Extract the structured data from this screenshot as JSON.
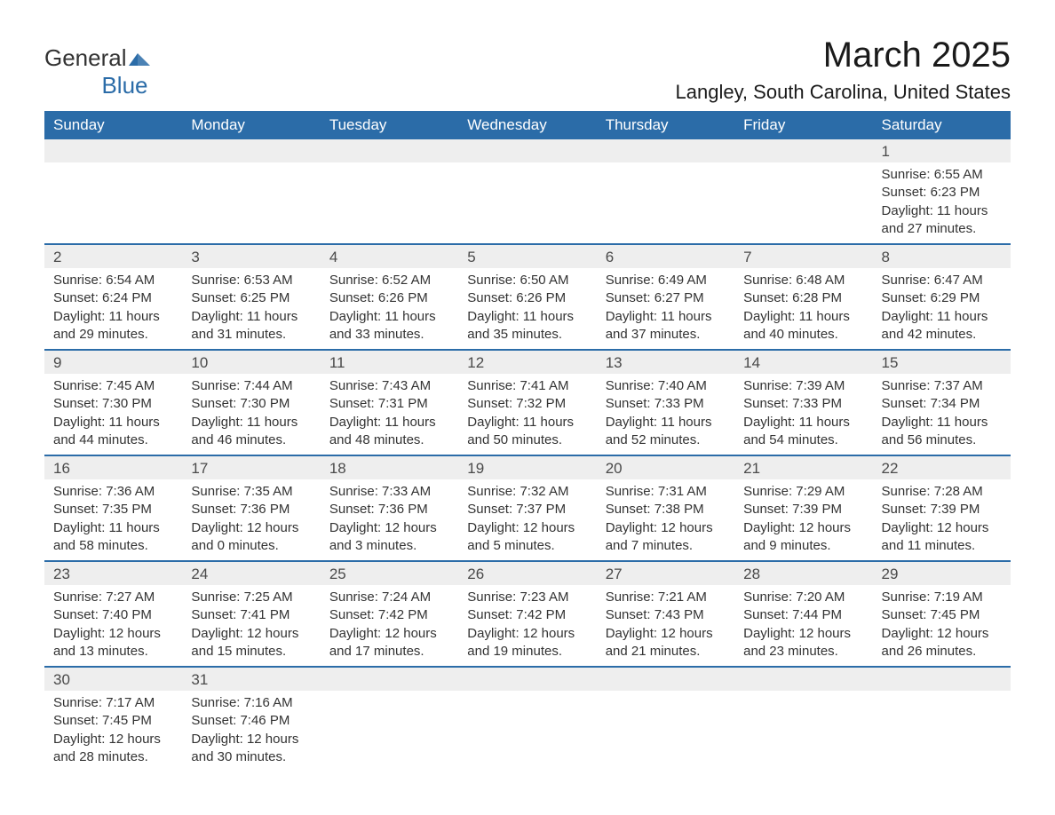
{
  "logo": {
    "line1": "General",
    "line2": "Blue",
    "iconColor": "#2b6ca8"
  },
  "title": "March 2025",
  "location": "Langley, South Carolina, United States",
  "colors": {
    "headerBg": "#2b6ca8",
    "headerText": "#ffffff",
    "dayRowBg": "#eeeeee",
    "borderTop": "#2b6ca8",
    "text": "#333333"
  },
  "dayHeaders": [
    "Sunday",
    "Monday",
    "Tuesday",
    "Wednesday",
    "Thursday",
    "Friday",
    "Saturday"
  ],
  "weeks": [
    [
      null,
      null,
      null,
      null,
      null,
      null,
      {
        "day": "1",
        "sunrise": "Sunrise: 6:55 AM",
        "sunset": "Sunset: 6:23 PM",
        "daylight1": "Daylight: 11 hours",
        "daylight2": "and 27 minutes."
      }
    ],
    [
      {
        "day": "2",
        "sunrise": "Sunrise: 6:54 AM",
        "sunset": "Sunset: 6:24 PM",
        "daylight1": "Daylight: 11 hours",
        "daylight2": "and 29 minutes."
      },
      {
        "day": "3",
        "sunrise": "Sunrise: 6:53 AM",
        "sunset": "Sunset: 6:25 PM",
        "daylight1": "Daylight: 11 hours",
        "daylight2": "and 31 minutes."
      },
      {
        "day": "4",
        "sunrise": "Sunrise: 6:52 AM",
        "sunset": "Sunset: 6:26 PM",
        "daylight1": "Daylight: 11 hours",
        "daylight2": "and 33 minutes."
      },
      {
        "day": "5",
        "sunrise": "Sunrise: 6:50 AM",
        "sunset": "Sunset: 6:26 PM",
        "daylight1": "Daylight: 11 hours",
        "daylight2": "and 35 minutes."
      },
      {
        "day": "6",
        "sunrise": "Sunrise: 6:49 AM",
        "sunset": "Sunset: 6:27 PM",
        "daylight1": "Daylight: 11 hours",
        "daylight2": "and 37 minutes."
      },
      {
        "day": "7",
        "sunrise": "Sunrise: 6:48 AM",
        "sunset": "Sunset: 6:28 PM",
        "daylight1": "Daylight: 11 hours",
        "daylight2": "and 40 minutes."
      },
      {
        "day": "8",
        "sunrise": "Sunrise: 6:47 AM",
        "sunset": "Sunset: 6:29 PM",
        "daylight1": "Daylight: 11 hours",
        "daylight2": "and 42 minutes."
      }
    ],
    [
      {
        "day": "9",
        "sunrise": "Sunrise: 7:45 AM",
        "sunset": "Sunset: 7:30 PM",
        "daylight1": "Daylight: 11 hours",
        "daylight2": "and 44 minutes."
      },
      {
        "day": "10",
        "sunrise": "Sunrise: 7:44 AM",
        "sunset": "Sunset: 7:30 PM",
        "daylight1": "Daylight: 11 hours",
        "daylight2": "and 46 minutes."
      },
      {
        "day": "11",
        "sunrise": "Sunrise: 7:43 AM",
        "sunset": "Sunset: 7:31 PM",
        "daylight1": "Daylight: 11 hours",
        "daylight2": "and 48 minutes."
      },
      {
        "day": "12",
        "sunrise": "Sunrise: 7:41 AM",
        "sunset": "Sunset: 7:32 PM",
        "daylight1": "Daylight: 11 hours",
        "daylight2": "and 50 minutes."
      },
      {
        "day": "13",
        "sunrise": "Sunrise: 7:40 AM",
        "sunset": "Sunset: 7:33 PM",
        "daylight1": "Daylight: 11 hours",
        "daylight2": "and 52 minutes."
      },
      {
        "day": "14",
        "sunrise": "Sunrise: 7:39 AM",
        "sunset": "Sunset: 7:33 PM",
        "daylight1": "Daylight: 11 hours",
        "daylight2": "and 54 minutes."
      },
      {
        "day": "15",
        "sunrise": "Sunrise: 7:37 AM",
        "sunset": "Sunset: 7:34 PM",
        "daylight1": "Daylight: 11 hours",
        "daylight2": "and 56 minutes."
      }
    ],
    [
      {
        "day": "16",
        "sunrise": "Sunrise: 7:36 AM",
        "sunset": "Sunset: 7:35 PM",
        "daylight1": "Daylight: 11 hours",
        "daylight2": "and 58 minutes."
      },
      {
        "day": "17",
        "sunrise": "Sunrise: 7:35 AM",
        "sunset": "Sunset: 7:36 PM",
        "daylight1": "Daylight: 12 hours",
        "daylight2": "and 0 minutes."
      },
      {
        "day": "18",
        "sunrise": "Sunrise: 7:33 AM",
        "sunset": "Sunset: 7:36 PM",
        "daylight1": "Daylight: 12 hours",
        "daylight2": "and 3 minutes."
      },
      {
        "day": "19",
        "sunrise": "Sunrise: 7:32 AM",
        "sunset": "Sunset: 7:37 PM",
        "daylight1": "Daylight: 12 hours",
        "daylight2": "and 5 minutes."
      },
      {
        "day": "20",
        "sunrise": "Sunrise: 7:31 AM",
        "sunset": "Sunset: 7:38 PM",
        "daylight1": "Daylight: 12 hours",
        "daylight2": "and 7 minutes."
      },
      {
        "day": "21",
        "sunrise": "Sunrise: 7:29 AM",
        "sunset": "Sunset: 7:39 PM",
        "daylight1": "Daylight: 12 hours",
        "daylight2": "and 9 minutes."
      },
      {
        "day": "22",
        "sunrise": "Sunrise: 7:28 AM",
        "sunset": "Sunset: 7:39 PM",
        "daylight1": "Daylight: 12 hours",
        "daylight2": "and 11 minutes."
      }
    ],
    [
      {
        "day": "23",
        "sunrise": "Sunrise: 7:27 AM",
        "sunset": "Sunset: 7:40 PM",
        "daylight1": "Daylight: 12 hours",
        "daylight2": "and 13 minutes."
      },
      {
        "day": "24",
        "sunrise": "Sunrise: 7:25 AM",
        "sunset": "Sunset: 7:41 PM",
        "daylight1": "Daylight: 12 hours",
        "daylight2": "and 15 minutes."
      },
      {
        "day": "25",
        "sunrise": "Sunrise: 7:24 AM",
        "sunset": "Sunset: 7:42 PM",
        "daylight1": "Daylight: 12 hours",
        "daylight2": "and 17 minutes."
      },
      {
        "day": "26",
        "sunrise": "Sunrise: 7:23 AM",
        "sunset": "Sunset: 7:42 PM",
        "daylight1": "Daylight: 12 hours",
        "daylight2": "and 19 minutes."
      },
      {
        "day": "27",
        "sunrise": "Sunrise: 7:21 AM",
        "sunset": "Sunset: 7:43 PM",
        "daylight1": "Daylight: 12 hours",
        "daylight2": "and 21 minutes."
      },
      {
        "day": "28",
        "sunrise": "Sunrise: 7:20 AM",
        "sunset": "Sunset: 7:44 PM",
        "daylight1": "Daylight: 12 hours",
        "daylight2": "and 23 minutes."
      },
      {
        "day": "29",
        "sunrise": "Sunrise: 7:19 AM",
        "sunset": "Sunset: 7:45 PM",
        "daylight1": "Daylight: 12 hours",
        "daylight2": "and 26 minutes."
      }
    ],
    [
      {
        "day": "30",
        "sunrise": "Sunrise: 7:17 AM",
        "sunset": "Sunset: 7:45 PM",
        "daylight1": "Daylight: 12 hours",
        "daylight2": "and 28 minutes."
      },
      {
        "day": "31",
        "sunrise": "Sunrise: 7:16 AM",
        "sunset": "Sunset: 7:46 PM",
        "daylight1": "Daylight: 12 hours",
        "daylight2": "and 30 minutes."
      },
      null,
      null,
      null,
      null,
      null
    ]
  ]
}
